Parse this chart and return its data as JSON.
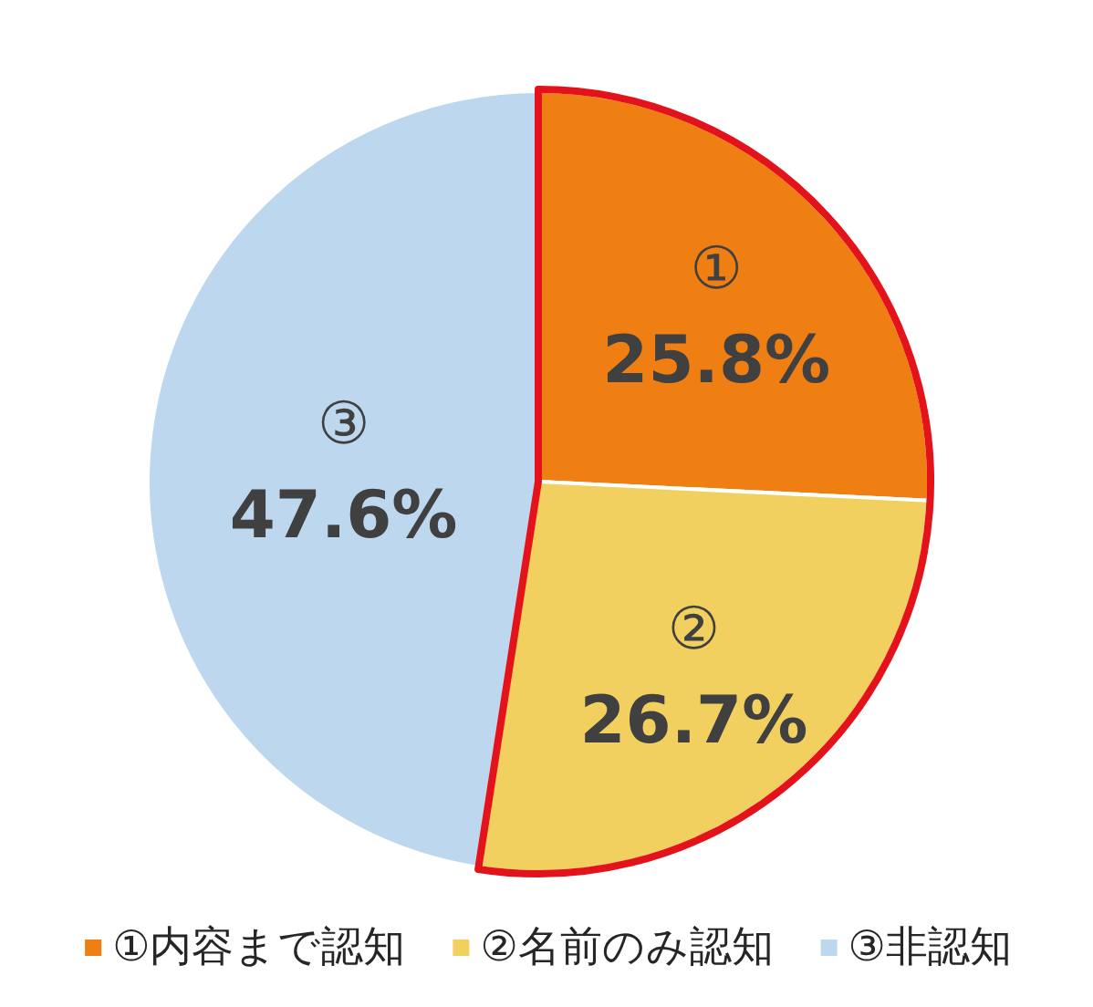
{
  "chart_data": {
    "type": "pie",
    "categories": [
      "①内容まで認知",
      "②名前のみ認知",
      "③非認知"
    ],
    "values": [
      25.8,
      26.7,
      47.6
    ],
    "colors": [
      "#f07f13",
      "#f1d05f",
      "#bdd7ee"
    ],
    "value_labels": [
      "①\n25.8%",
      "②\n26.7%",
      "③\n47.6%"
    ],
    "legend": "bottom"
  }
}
